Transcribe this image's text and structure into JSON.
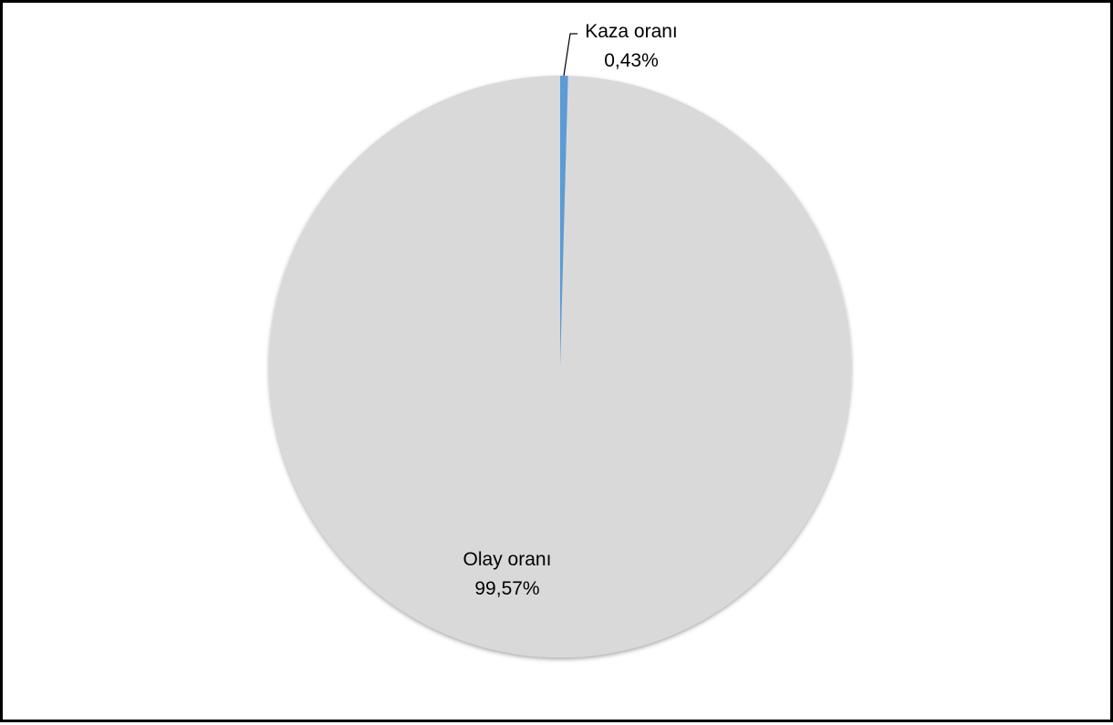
{
  "chart_data": {
    "type": "pie",
    "slices": [
      {
        "label": "Olay oranı",
        "value": 99.57,
        "value_text": "99,57%",
        "color": "#d9d9d9"
      },
      {
        "label": "Kaza oranı",
        "value": 0.43,
        "value_text": "0,43%",
        "color": "#5b9bd5"
      }
    ],
    "start_angle_deg": 0,
    "direction": "counterclockwise",
    "legend": "none",
    "title": ""
  }
}
